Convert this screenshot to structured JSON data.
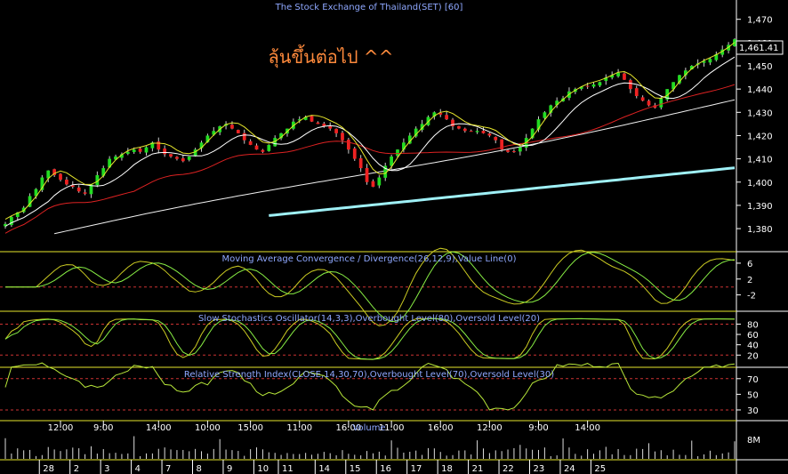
{
  "chart_data": {
    "type": "line",
    "title": "The Stock Exchange of Thailand(SET) [60]",
    "annotation": "ลุ้นขึ้นต่อไป ^^",
    "last_price_label": "1,461.41",
    "main_panel": {
      "ylim": [
        1372,
        1476
      ],
      "y_ticks": [
        "1,470",
        "1,460",
        "1,450",
        "1,440",
        "1,430",
        "1,420",
        "1,410",
        "1,400",
        "1,390",
        "1,380"
      ],
      "y_tick_values": [
        1470,
        1460,
        1450,
        1440,
        1430,
        1420,
        1410,
        1400,
        1390,
        1380
      ],
      "close": [
        1382,
        1385,
        1387,
        1389,
        1394,
        1397,
        1402,
        1405,
        1403,
        1401,
        1399,
        1398,
        1396,
        1395,
        1399,
        1403,
        1406,
        1410,
        1411,
        1412,
        1413,
        1414,
        1413,
        1415,
        1417,
        1414,
        1412,
        1411,
        1410,
        1409,
        1411,
        1414,
        1417,
        1420,
        1422,
        1424,
        1425,
        1423,
        1421,
        1418,
        1416,
        1414,
        1413,
        1416,
        1419,
        1421,
        1423,
        1426,
        1427,
        1428,
        1426,
        1425,
        1424,
        1423,
        1421,
        1418,
        1414,
        1410,
        1406,
        1400,
        1398,
        1402,
        1407,
        1411,
        1414,
        1417,
        1420,
        1423,
        1425,
        1428,
        1430,
        1429,
        1427,
        1424,
        1423,
        1422,
        1422,
        1422,
        1421,
        1420,
        1418,
        1414,
        1413,
        1413,
        1415,
        1419,
        1423,
        1427,
        1430,
        1433,
        1435,
        1436,
        1439,
        1440,
        1441,
        1441,
        1442,
        1443,
        1445,
        1446,
        1447,
        1444,
        1440,
        1437,
        1435,
        1433,
        1432,
        1436,
        1440,
        1443,
        1446,
        1448,
        1450,
        1451,
        1452,
        1453,
        1455,
        1457,
        1459,
        1461.41
      ]
    },
    "macd_panel": {
      "title": "Moving Average Convergence / Divergence(26,12,9),Value Line(0)",
      "ylim": [
        -5,
        8
      ],
      "y_ticks": [
        "6",
        "2",
        "-2"
      ],
      "y_tick_values": [
        6,
        2,
        -2
      ],
      "zero_line": 0
    },
    "stoch_panel": {
      "title": "Slow Stochastics Oscillator(14,3,3),Overbought Level(80),Oversold Level(20)",
      "ylim": [
        5,
        98
      ],
      "y_ticks": [
        "80",
        "60",
        "40",
        "20"
      ],
      "y_tick_values": [
        80,
        60,
        40,
        20
      ],
      "overbought": 80,
      "oversold": 20
    },
    "rsi_panel": {
      "title": "Relative Strength Index(CLOSE,14,30,70),Overbought Level(70),Oversold Level(30)",
      "ylim": [
        22,
        80
      ],
      "y_ticks": [
        "70",
        "50",
        "30"
      ],
      "y_tick_values": [
        70,
        50,
        30
      ],
      "overbought": 70,
      "oversold": 30
    },
    "volume_panel": {
      "title": "Volume",
      "y_ticks": [
        "8M"
      ]
    },
    "x_axis": {
      "time_labels": [
        {
          "i": 9,
          "t": "12:00"
        },
        {
          "i": 16,
          "t": "9:00"
        },
        {
          "i": 25,
          "t": "14:00"
        },
        {
          "i": 33,
          "t": "10:00"
        },
        {
          "i": 40,
          "t": "15:00"
        },
        {
          "i": 48,
          "t": "11:00"
        },
        {
          "i": 56,
          "t": "16:00"
        },
        {
          "i": 63,
          "t": "11:00"
        },
        {
          "i": 71,
          "t": "16:00"
        },
        {
          "i": 79,
          "t": "12:00"
        },
        {
          "i": 87,
          "t": "9:00"
        },
        {
          "i": 95,
          "t": "14:00"
        }
      ],
      "day_labels": [
        {
          "i": 7,
          "t": "28"
        },
        {
          "i": 12,
          "t": "2"
        },
        {
          "i": 17,
          "t": "3"
        },
        {
          "i": 22,
          "t": "4"
        },
        {
          "i": 27,
          "t": "7"
        },
        {
          "i": 32,
          "t": "8"
        },
        {
          "i": 37,
          "t": "9"
        },
        {
          "i": 42,
          "t": "10"
        },
        {
          "i": 46,
          "t": "11"
        },
        {
          "i": 52,
          "t": "14"
        },
        {
          "i": 57,
          "t": "15"
        },
        {
          "i": 62,
          "t": "16"
        },
        {
          "i": 67,
          "t": "17"
        },
        {
          "i": 72,
          "t": "18"
        },
        {
          "i": 77,
          "t": "21"
        },
        {
          "i": 82,
          "t": "22"
        },
        {
          "i": 87,
          "t": "23"
        },
        {
          "i": 92,
          "t": "24"
        },
        {
          "i": 97,
          "t": "25"
        }
      ]
    }
  }
}
